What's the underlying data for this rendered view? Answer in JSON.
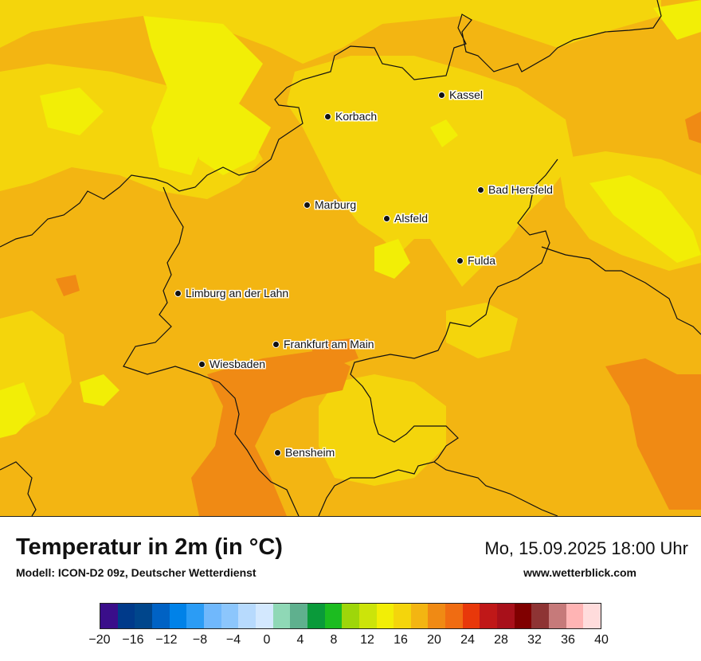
{
  "map": {
    "background_color": "#f3b512",
    "regions_light": [
      "#f4d50c",
      "#f2ee06"
    ],
    "regions_warm": [
      "#f08a14"
    ],
    "cities": [
      {
        "name": "Kassel"
      },
      {
        "name": "Korbach"
      },
      {
        "name": "Bad Hersfeld"
      },
      {
        "name": "Marburg"
      },
      {
        "name": "Alsfeld"
      },
      {
        "name": "Fulda"
      },
      {
        "name": "Limburg an der Lahn"
      },
      {
        "name": "Frankfurt am Main"
      },
      {
        "name": "Wiesbaden"
      },
      {
        "name": "Bensheim"
      }
    ]
  },
  "footer": {
    "title": "Temperatur in 2m (in °C)",
    "model": "Modell: ICON-D2 09z, Deutscher Wetterdienst",
    "datetime": "Mo, 15.09.2025 18:00 Uhr",
    "website": "www.wetterblick.com"
  },
  "legend": {
    "colors": [
      "#3a0e8a",
      "#003a8a",
      "#00468c",
      "#0062c4",
      "#0082e8",
      "#2b9cf5",
      "#70b8fc",
      "#8cc6fc",
      "#b7dafd",
      "#d3e8fe",
      "#8fd8b6",
      "#5fb08e",
      "#0a9a3a",
      "#1cbc20",
      "#9ed60a",
      "#cce40a",
      "#f2ee06",
      "#f4d50c",
      "#f3b512",
      "#f08a14",
      "#f06c12",
      "#e8380a",
      "#c01818",
      "#a8101a",
      "#800000",
      "#8e3434",
      "#c67a7a",
      "#ffb4b4",
      "#ffdcdc"
    ],
    "ticks": [
      "−20",
      "−16",
      "−12",
      "−8",
      "−4",
      "0",
      "4",
      "8",
      "12",
      "16",
      "20",
      "24",
      "28",
      "32",
      "36",
      "40"
    ]
  }
}
